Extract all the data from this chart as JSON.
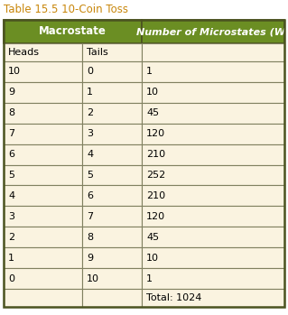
{
  "title": "Table 15.5 10-Coin Toss",
  "title_color": "#C8860A",
  "header1_text": "Macrostate",
  "header2_text": "Number of Microstates (W)",
  "subheader": [
    "Heads",
    "Tails"
  ],
  "rows": [
    [
      "10",
      "0",
      "1"
    ],
    [
      "9",
      "1",
      "10"
    ],
    [
      "8",
      "2",
      "45"
    ],
    [
      "7",
      "3",
      "120"
    ],
    [
      "6",
      "4",
      "210"
    ],
    [
      "5",
      "5",
      "252"
    ],
    [
      "4",
      "6",
      "210"
    ],
    [
      "3",
      "7",
      "120"
    ],
    [
      "2",
      "8",
      "45"
    ],
    [
      "1",
      "9",
      "10"
    ],
    [
      "0",
      "10",
      "1"
    ]
  ],
  "total_text": "Total: 1024",
  "header_bg": "#6B8E23",
  "header_text_color": "#FFFFFF",
  "cell_bg": "#FAF3E0",
  "cell_border_color": "#808060",
  "outer_border_color": "#4B5320",
  "title_fontsize": 8.5,
  "header_fontsize": 8.5,
  "cell_fontsize": 8.0,
  "figsize": [
    3.19,
    3.49
  ],
  "dpi": 100
}
